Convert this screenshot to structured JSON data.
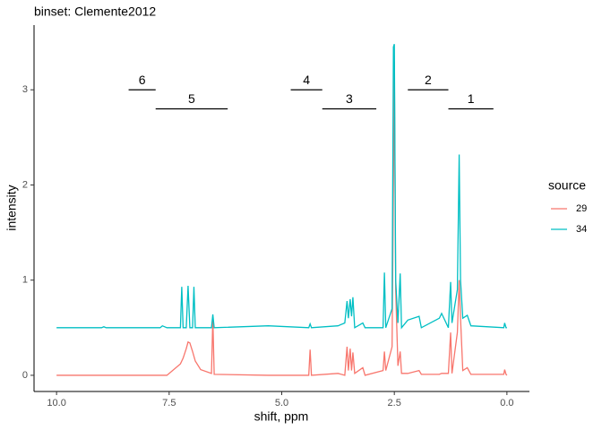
{
  "chart_data": {
    "type": "line",
    "title": "binset: Clemente2012",
    "x_label": "shift, ppm",
    "y_label": "intensity",
    "legend_title": "source",
    "legend_position": "right",
    "x_reversed": true,
    "grid": false,
    "xlim": [
      10.5,
      -0.5
    ],
    "ylim": [
      -0.17,
      3.68
    ],
    "xticks": [
      {
        "value": 10,
        "label": "10.0"
      },
      7.5,
      {
        "value": 5,
        "label": "5.0"
      },
      2.5,
      {
        "value": 0,
        "label": "0.0"
      }
    ],
    "yticks": [
      0,
      1,
      2,
      3
    ],
    "x": [
      10.0,
      9.0,
      8.95,
      8.9,
      7.7,
      7.65,
      7.55,
      7.25,
      7.22,
      7.19,
      7.12,
      7.08,
      7.04,
      6.98,
      6.95,
      6.92,
      6.8,
      6.56,
      6.53,
      6.5,
      5.3,
      4.4,
      4.37,
      4.34,
      3.75,
      3.6,
      3.55,
      3.52,
      3.48,
      3.45,
      3.42,
      3.38,
      3.2,
      3.15,
      2.75,
      2.72,
      2.69,
      2.55,
      2.52,
      2.5,
      2.47,
      2.42,
      2.37,
      2.34,
      2.2,
      1.95,
      1.9,
      1.5,
      1.45,
      1.3,
      1.25,
      1.22,
      1.1,
      1.06,
      1.03,
      0.98,
      0.88,
      0.8,
      0.07,
      0.05,
      0.02,
      0.0
    ],
    "series": [
      {
        "name": "29",
        "color": "#F8766D",
        "values": [
          0,
          0,
          0,
          0,
          0,
          0,
          0,
          0.12,
          0.15,
          0.18,
          0.28,
          0.35,
          0.34,
          0.25,
          0.2,
          0.15,
          0.06,
          0.02,
          0.6,
          0.01,
          0,
          0,
          0.27,
          0,
          0.02,
          0,
          0.3,
          0.05,
          0.28,
          0.05,
          0.24,
          0.02,
          0.08,
          0,
          0.05,
          0.25,
          0.05,
          0.3,
          2.0,
          3.3,
          0.9,
          0.1,
          0.25,
          0.02,
          0.02,
          0.05,
          0.01,
          0.01,
          0.02,
          0.02,
          0.45,
          0.02,
          0.45,
          1.0,
          0.6,
          0.05,
          0.08,
          0.01,
          0.01,
          0.06,
          0.01,
          0
        ]
      },
      {
        "name": "34",
        "color": "#00BFC4",
        "values": [
          0.5,
          0.5,
          0.51,
          0.5,
          0.5,
          0.52,
          0.5,
          0.5,
          0.93,
          0.5,
          0.5,
          0.94,
          0.5,
          0.5,
          0.93,
          0.5,
          0.5,
          0.5,
          0.64,
          0.5,
          0.52,
          0.5,
          0.54,
          0.5,
          0.52,
          0.55,
          0.78,
          0.6,
          0.8,
          0.62,
          0.82,
          0.5,
          0.55,
          0.5,
          0.5,
          1.08,
          0.5,
          0.7,
          3.45,
          3.48,
          1.0,
          0.55,
          1.07,
          0.5,
          0.58,
          0.62,
          0.5,
          0.6,
          0.65,
          0.5,
          0.98,
          0.55,
          0.9,
          2.32,
          1.0,
          0.6,
          0.63,
          0.52,
          0.5,
          0.55,
          0.5,
          0.5
        ]
      }
    ],
    "bins": [
      {
        "label": "6",
        "x": [
          8.4,
          7.8
        ],
        "y": 3.0
      },
      {
        "label": "5",
        "x": [
          7.8,
          6.2
        ],
        "y": 2.8
      },
      {
        "label": "4",
        "x": [
          4.8,
          4.1
        ],
        "y": 3.0
      },
      {
        "label": "3",
        "x": [
          4.1,
          2.9
        ],
        "y": 2.8
      },
      {
        "label": "2",
        "x": [
          2.2,
          1.3
        ],
        "y": 3.0
      },
      {
        "label": "1",
        "x": [
          1.3,
          0.3
        ],
        "y": 2.8
      }
    ]
  }
}
